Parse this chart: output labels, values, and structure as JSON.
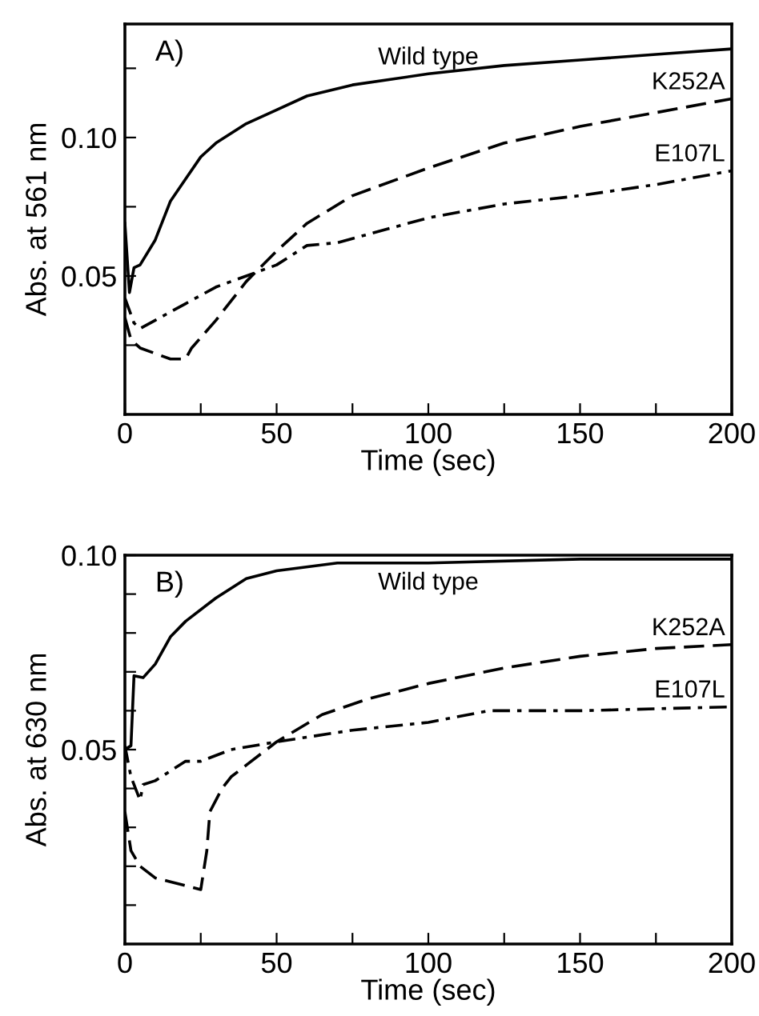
{
  "chart_data": [
    {
      "type": "line",
      "title": "A)",
      "xlabel": "Time (sec)",
      "ylabel": "Abs. at 561 nm",
      "xlim": [
        0,
        200
      ],
      "ylim": [
        0,
        0.141
      ],
      "xticks": [
        0,
        {
          "value": 25,
          "label": null
        },
        50,
        {
          "value": 75,
          "label": null
        },
        100,
        {
          "value": 125,
          "label": null
        },
        150,
        {
          "value": 175,
          "label": null
        },
        200
      ],
      "yticks": [
        {
          "value": 0.025,
          "label": null
        },
        {
          "value": 0.05,
          "label": "0.05"
        },
        {
          "value": 0.075,
          "label": null
        },
        {
          "value": 0.1,
          "label": "0.10"
        },
        {
          "value": 0.125,
          "label": null
        }
      ],
      "grid": false,
      "legend": false,
      "series": [
        {
          "name": "Wild type",
          "color": "#000000",
          "line_style": "solid",
          "x": [
            0,
            1.5,
            3,
            5,
            10,
            15,
            20,
            25,
            30,
            40,
            50,
            60,
            75,
            100,
            125,
            150,
            175,
            200
          ],
          "values": [
            0.069,
            0.044,
            0.053,
            0.054,
            0.063,
            0.077,
            0.085,
            0.093,
            0.098,
            0.105,
            0.11,
            0.115,
            0.119,
            0.123,
            0.126,
            0.128,
            0.13,
            0.132
          ]
        },
        {
          "name": "K252A",
          "color": "#000000",
          "line_style": "dashed",
          "x": [
            0,
            2,
            5,
            10,
            15,
            20,
            22,
            30,
            40,
            50,
            60,
            75,
            100,
            125,
            150,
            175,
            200
          ],
          "values": [
            0.035,
            0.027,
            0.024,
            0.022,
            0.02,
            0.02,
            0.024,
            0.034,
            0.048,
            0.059,
            0.069,
            0.079,
            0.089,
            0.098,
            0.104,
            0.109,
            0.114
          ]
        },
        {
          "name": "E107L",
          "color": "#000000",
          "line_style": "dotted",
          "x": [
            0,
            3,
            5,
            10,
            20,
            30,
            40,
            50,
            60,
            70,
            100,
            125,
            150,
            175,
            200
          ],
          "values": [
            0.042,
            0.033,
            0.031,
            0.034,
            0.04,
            0.046,
            0.05,
            0.054,
            0.061,
            0.062,
            0.071,
            0.076,
            0.079,
            0.083,
            0.088
          ]
        }
      ]
    },
    {
      "type": "line",
      "title": "B)",
      "xlabel": "Time (sec)",
      "ylabel": "Abs. at 630 nm",
      "xlim": [
        0,
        200
      ],
      "ylim": [
        0,
        0.1
      ],
      "xticks": [
        0,
        {
          "value": 25,
          "label": null
        },
        50,
        {
          "value": 75,
          "label": null
        },
        100,
        {
          "value": 125,
          "label": null
        },
        150,
        {
          "value": 175,
          "label": null
        },
        200
      ],
      "yticks": [
        {
          "value": 0.01,
          "label": null
        },
        {
          "value": 0.02,
          "label": null
        },
        {
          "value": 0.03,
          "label": null
        },
        {
          "value": 0.04,
          "label": null
        },
        {
          "value": 0.05,
          "label": "0.05"
        },
        {
          "value": 0.06,
          "label": null
        },
        {
          "value": 0.07,
          "label": null
        },
        {
          "value": 0.08,
          "label": null
        },
        {
          "value": 0.09,
          "label": null
        },
        {
          "value": 0.1,
          "label": "0.10"
        }
      ],
      "grid": false,
      "legend": false,
      "series": [
        {
          "name": "Wild type",
          "color": "#000000",
          "line_style": "solid",
          "x": [
            0,
            2,
            3,
            6,
            10,
            15,
            20,
            30,
            40,
            50,
            70,
            100,
            150,
            200
          ],
          "values": [
            0.05,
            0.051,
            0.069,
            0.0685,
            0.072,
            0.079,
            0.083,
            0.089,
            0.094,
            0.096,
            0.098,
            0.098,
            0.099,
            0.099
          ]
        },
        {
          "name": "K252A",
          "color": "#000000",
          "line_style": "dashed",
          "x": [
            0,
            2,
            5,
            10,
            15,
            20,
            25,
            27,
            28,
            32,
            35,
            40,
            50,
            65,
            80,
            100,
            125,
            150,
            175,
            200
          ],
          "values": [
            0.034,
            0.024,
            0.02,
            0.017,
            0.016,
            0.015,
            0.014,
            0.024,
            0.034,
            0.04,
            0.043,
            0.046,
            0.052,
            0.059,
            0.063,
            0.067,
            0.071,
            0.074,
            0.076,
            0.077
          ]
        },
        {
          "name": "E107L",
          "color": "#000000",
          "line_style": "dotted",
          "x": [
            0,
            2,
            5,
            6,
            10,
            20,
            25,
            35,
            50,
            75,
            100,
            120,
            150,
            200
          ],
          "values": [
            0.051,
            0.043,
            0.037,
            0.041,
            0.042,
            0.047,
            0.047,
            0.05,
            0.052,
            0.055,
            0.057,
            0.06,
            0.06,
            0.061
          ]
        }
      ]
    }
  ]
}
